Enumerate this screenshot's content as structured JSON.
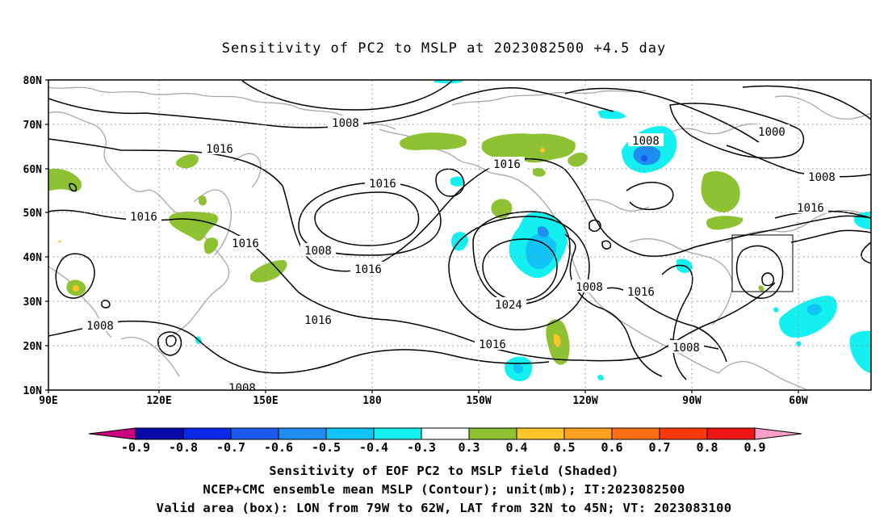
{
  "title": "Sensitivity of PC2 to MSLP at 2023082500 +4.5 day",
  "lat_labels": [
    "80N",
    "70N",
    "60N",
    "50N",
    "40N",
    "30N",
    "20N",
    "10N"
  ],
  "lon_labels": [
    "90E",
    "120E",
    "150E",
    "180",
    "150W",
    "120W",
    "90W",
    "60W"
  ],
  "contour_labels": [
    "1008",
    "1016",
    "1016",
    "1016",
    "1016",
    "1008",
    "1016",
    "1016",
    "1024",
    "1016",
    "1016",
    "1008",
    "1016",
    "1008",
    "1008",
    "1000",
    "1008",
    "1016",
    "1008",
    "1008"
  ],
  "colorbar": {
    "labels": [
      "-0.9",
      "-0.8",
      "-0.7",
      "-0.6",
      "-0.5",
      "-0.4",
      "-0.3",
      "0.3",
      "0.4",
      "0.5",
      "0.6",
      "0.7",
      "0.8",
      "0.9"
    ],
    "colors": [
      "#c6007e",
      "#0a0aa8",
      "#0a28e6",
      "#1e5af0",
      "#1e8cf0",
      "#12c3f5",
      "#14f0f0",
      "#ffffff",
      "#8fc232",
      "#ffc428",
      "#ffa01e",
      "#ff6e14",
      "#ff3a0a",
      "#f01414",
      "#ff9ec8"
    ]
  },
  "captions": [
    "Sensitivity of EOF PC2 to MSLP field (Shaded)",
    "NCEP+CMC ensemble mean MSLP (Contour); unit(mb); IT:2023082500",
    "Valid area (box): LON from 79W to 62W, LAT from 32N to 45N; VT: 2023083100"
  ]
}
